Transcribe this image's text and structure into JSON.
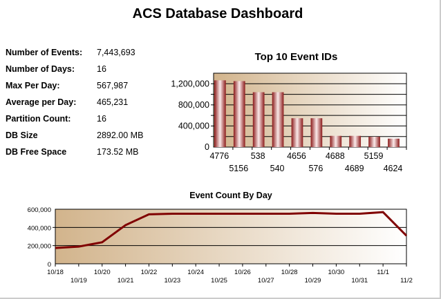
{
  "title": "ACS Database Dashboard",
  "stats": [
    {
      "label": "Number of Events:",
      "value": "7,443,693"
    },
    {
      "label": "Number of Days:",
      "value": "16"
    },
    {
      "label": "Max Per Day:",
      "value": "567,987"
    },
    {
      "label": "Average per Day:",
      "value": "465,231"
    },
    {
      "label": "Partition Count:",
      "value": "16"
    },
    {
      "label": "DB Size",
      "value": "2892.00 MB"
    },
    {
      "label": "DB Free Space",
      "value": "173.52 MB"
    }
  ],
  "chart_data": [
    {
      "type": "bar",
      "title": "Top 10 Event IDs",
      "categories": [
        "4776",
        "5156",
        "538",
        "540",
        "4656",
        "576",
        "4688",
        "4689",
        "5159",
        "4624"
      ],
      "values": [
        1265000,
        1250000,
        1040000,
        1040000,
        547000,
        547000,
        213000,
        213000,
        196000,
        160000
      ],
      "ylim": [
        0,
        1400000
      ],
      "yticks": [
        "0",
        "400,000",
        "800,000",
        "1,200,000"
      ],
      "grid": true,
      "bar_color": "#8b1a1a",
      "background": [
        "#d2b48c",
        "#ffffff"
      ]
    },
    {
      "type": "line",
      "title": "Event Count By Day",
      "categories": [
        "10/18",
        "10/19",
        "10/20",
        "10/21",
        "10/22",
        "10/23",
        "10/24",
        "10/25",
        "10/26",
        "10/27",
        "10/28",
        "10/29",
        "10/30",
        "10/31",
        "11/1",
        "11/2"
      ],
      "values": [
        174000,
        189000,
        237000,
        425000,
        544000,
        551000,
        551000,
        551000,
        551000,
        551000,
        551000,
        559000,
        551000,
        551000,
        567987,
        309000
      ],
      "ylim": [
        0,
        600000
      ],
      "yticks": [
        "0",
        "200,000",
        "400,000",
        "600,000"
      ],
      "grid": true,
      "line_color": "#800000",
      "background": [
        "#d2b48c",
        "#ffffff"
      ]
    }
  ]
}
